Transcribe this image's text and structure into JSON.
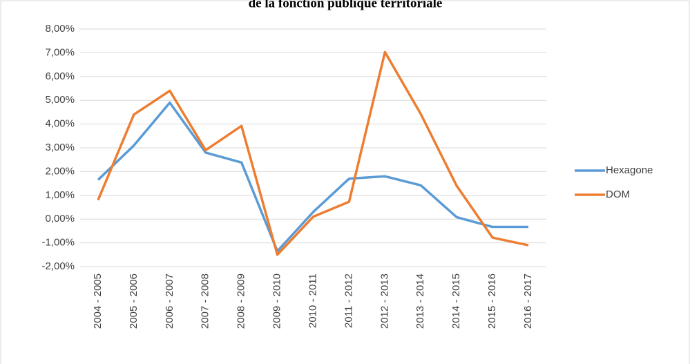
{
  "chart_data": {
    "type": "line",
    "title": "de la fonction publique territoriale",
    "categories": [
      "2004 - 2005",
      "2005 - 2006",
      "2006 - 2007",
      "2007 - 2008",
      "2008 - 2009",
      "2009 - 2010",
      "2010 - 2011",
      "2011 - 2012",
      "2012 - 2013",
      "2013 - 2014",
      "2014 - 2015",
      "2015 - 2016",
      "2016 - 2017"
    ],
    "series": [
      {
        "name": "Hexagone",
        "color": "#5b9bd5",
        "values": [
          1.65,
          3.1,
          4.9,
          2.8,
          2.38,
          -1.35,
          0.3,
          1.7,
          1.8,
          1.42,
          0.08,
          -0.33,
          -0.33
        ]
      },
      {
        "name": "DOM",
        "color": "#ed7d31",
        "values": [
          0.8,
          4.4,
          5.4,
          2.9,
          3.92,
          -1.5,
          0.1,
          0.73,
          7.03,
          4.42,
          1.4,
          -0.78,
          -1.1
        ]
      }
    ],
    "ylim": [
      -2,
      8
    ],
    "yticks": [
      {
        "value": -2,
        "label": "-2,00%"
      },
      {
        "value": -1,
        "label": "-1,00%"
      },
      {
        "value": 0,
        "label": "0,00%"
      },
      {
        "value": 1,
        "label": "1,00%"
      },
      {
        "value": 2,
        "label": "2,00%"
      },
      {
        "value": 3,
        "label": "3,00%"
      },
      {
        "value": 4,
        "label": "4,00%"
      },
      {
        "value": 5,
        "label": "5,00%"
      },
      {
        "value": 6,
        "label": "6,00%"
      },
      {
        "value": 7,
        "label": "7,00%"
      },
      {
        "value": 8,
        "label": "8,00%"
      }
    ],
    "grid": true,
    "legend": "right"
  }
}
